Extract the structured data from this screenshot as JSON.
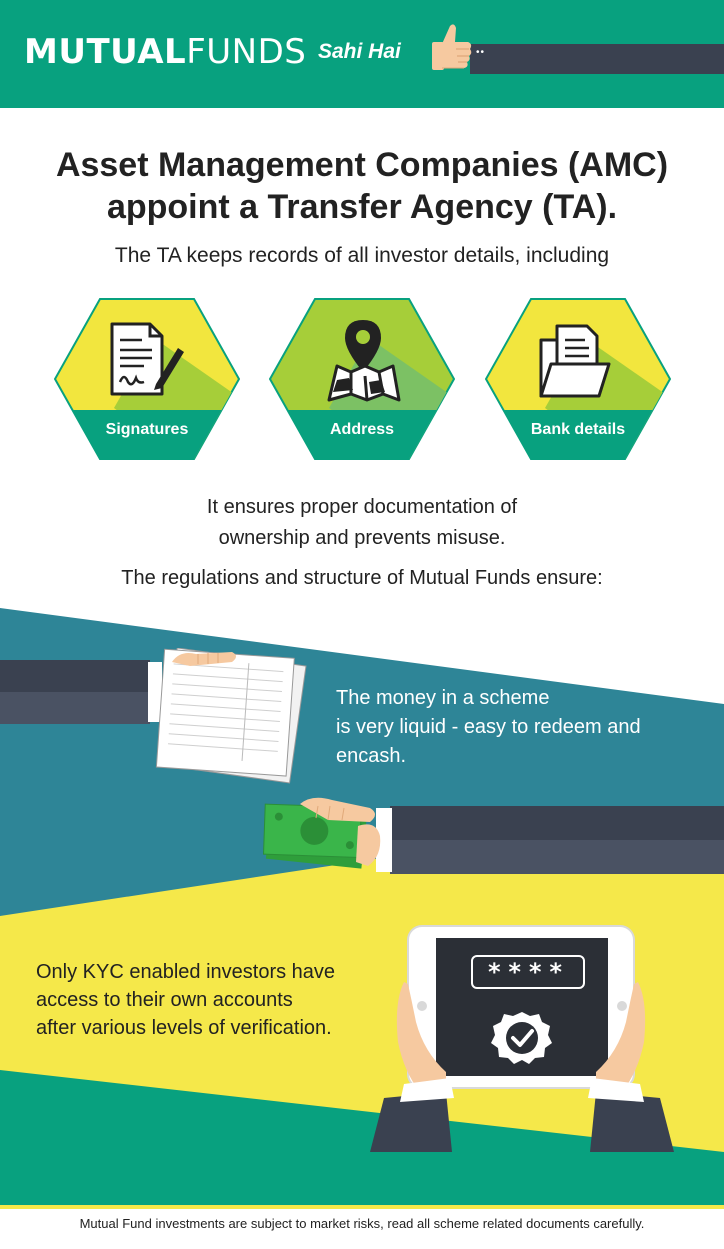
{
  "header": {
    "brand_bold": "MUTUAL",
    "brand_light": "FUNDS",
    "tagline": "Sahi Hai",
    "sleeve_dots": "••"
  },
  "title": {
    "line1": "Asset Management Companies (AMC)",
    "line2": "appoint a Transfer Agency (TA)."
  },
  "subtitle": "The TA keeps records of all investor details, including",
  "records": [
    {
      "label": "Signatures",
      "icon": "signature-document-icon"
    },
    {
      "label": "Address",
      "icon": "map-pin-icon"
    },
    {
      "label": "Bank details",
      "icon": "folder-documents-icon"
    }
  ],
  "ensure": {
    "line1": "It ensures proper documentation of",
    "line2": "ownership and prevents misuse."
  },
  "regulations": "The regulations and structure of Mutual Funds ensure:",
  "liquid": {
    "line1": "The money in a scheme",
    "line2": "is very liquid - easy to redeem and",
    "line3": "encash."
  },
  "kyc": {
    "line1": "Only KYC enabled investors have",
    "line2": "access to their own accounts",
    "line3": "after various levels of verification."
  },
  "tablet": {
    "password_mask": "****"
  },
  "footer": {
    "disclaimer": "Mutual Fund investments are subject to market risks, read all scheme related documents carefully."
  },
  "colors": {
    "green": "#08a17f",
    "teal": "#2e8597",
    "yellow": "#f5e84a",
    "dark_slate": "#3a4150",
    "hex_yellow": "#f2e63e",
    "hex_lime": "#a6ce39"
  }
}
